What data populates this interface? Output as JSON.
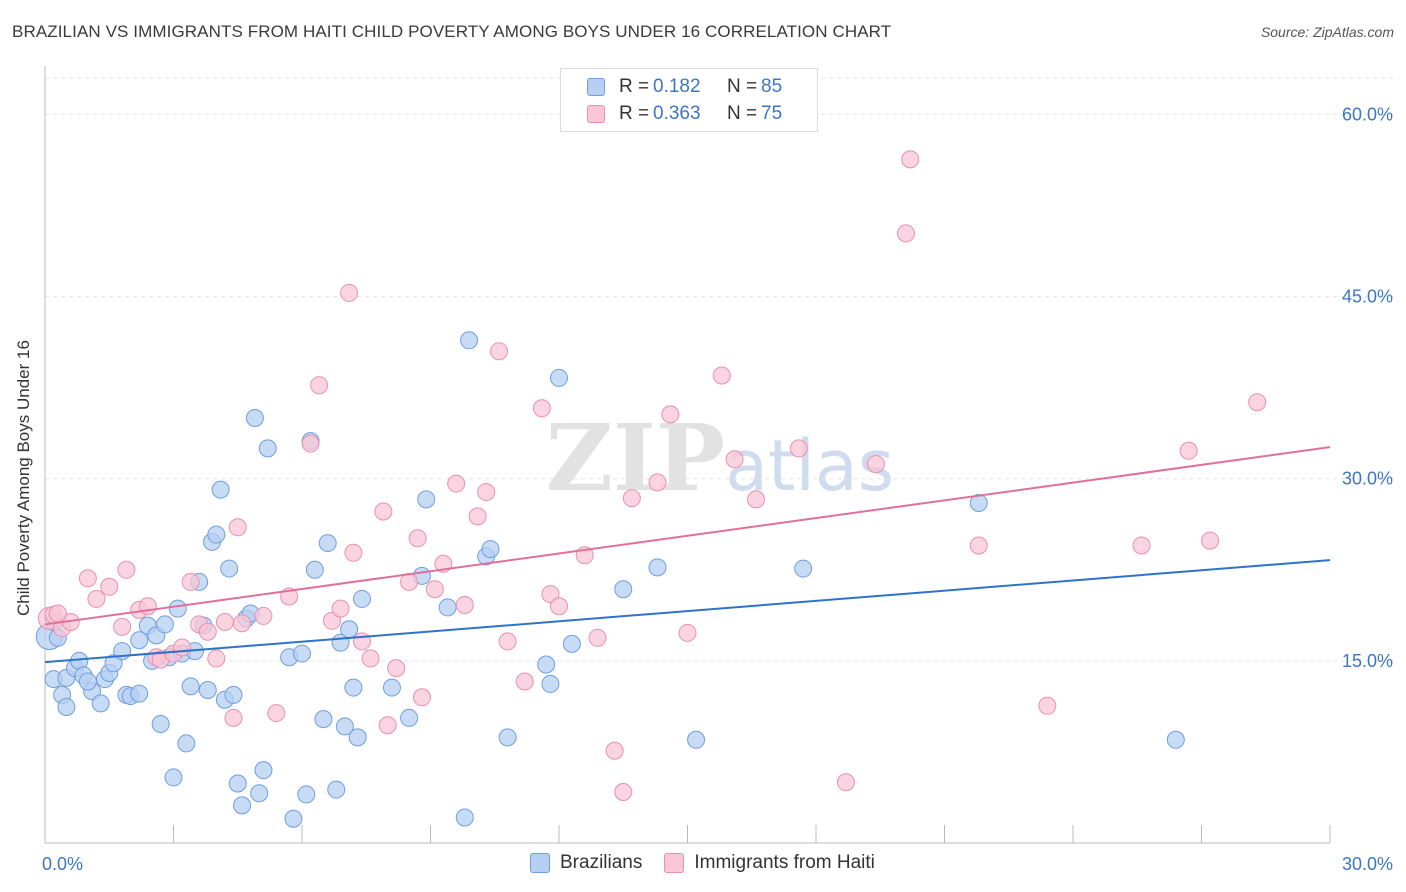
{
  "title": "BRAZILIAN VS IMMIGRANTS FROM HAITI CHILD POVERTY AMONG BOYS UNDER 16 CORRELATION CHART",
  "source": "Source: ZipAtlas.com",
  "watermark": "ZIPatlas",
  "legend": {
    "r_label": "R =",
    "n_label": "N =",
    "rows": [
      {
        "r": "0.182",
        "n": "85",
        "color": "#a7c5ef"
      },
      {
        "r": "0.363",
        "n": "75",
        "color": "#f6b8cb"
      }
    ]
  },
  "bottom_legend": [
    "Brazilians",
    "Immigrants from Haiti"
  ],
  "colors": {
    "blue_fill": "#b6cff2",
    "blue_stroke": "#6e9ee0",
    "blue_line": "#2f73c9",
    "pink_fill": "#f8c6d5",
    "pink_stroke": "#ea90ad",
    "pink_line": "#e0709a",
    "axis_text": "#3b76c4"
  },
  "chart_data": {
    "type": "scatter",
    "title": "BRAZILIAN VS IMMIGRANTS FROM HAITI CHILD POVERTY AMONG BOYS UNDER 16 CORRELATION CHART",
    "xlabel": "",
    "ylabel": "Child Poverty Among Boys Under 16",
    "xlim": [
      0,
      30
    ],
    "ylim": [
      0,
      63
    ],
    "x_tick_labels": [
      "0.0%",
      "30.0%"
    ],
    "y_ticks": [
      15,
      30,
      45,
      60
    ],
    "y_tick_labels": [
      "15.0%",
      "30.0%",
      "45.0%",
      "60.0%"
    ],
    "grid": true,
    "legend_placement": "top-center",
    "series": [
      {
        "name": "Brazilians",
        "trend": {
          "x": [
            0,
            30
          ],
          "y": [
            14.9,
            23.3
          ]
        },
        "points": [
          [
            0.1,
            17.0
          ],
          [
            0.2,
            13.5
          ],
          [
            0.4,
            12.2
          ],
          [
            0.5,
            11.2
          ],
          [
            0.5,
            13.6
          ],
          [
            0.7,
            14.4
          ],
          [
            0.8,
            15.0
          ],
          [
            0.9,
            13.8
          ],
          [
            1.1,
            12.5
          ],
          [
            1.3,
            11.5
          ],
          [
            1.4,
            13.5
          ],
          [
            1.5,
            14.0
          ],
          [
            1.6,
            14.8
          ],
          [
            1.8,
            15.8
          ],
          [
            1.9,
            12.2
          ],
          [
            2.0,
            12.1
          ],
          [
            2.2,
            12.3
          ],
          [
            2.2,
            16.7
          ],
          [
            2.4,
            17.9
          ],
          [
            2.5,
            15.0
          ],
          [
            2.6,
            17.1
          ],
          [
            2.7,
            9.8
          ],
          [
            2.8,
            18.0
          ],
          [
            2.9,
            15.3
          ],
          [
            3.0,
            5.4
          ],
          [
            3.1,
            19.3
          ],
          [
            3.2,
            15.6
          ],
          [
            3.3,
            8.2
          ],
          [
            3.4,
            12.9
          ],
          [
            3.5,
            15.8
          ],
          [
            3.6,
            21.5
          ],
          [
            3.7,
            17.9
          ],
          [
            3.8,
            12.6
          ],
          [
            3.9,
            24.8
          ],
          [
            4.0,
            25.4
          ],
          [
            4.1,
            29.1
          ],
          [
            4.2,
            11.8
          ],
          [
            4.3,
            22.6
          ],
          [
            4.4,
            12.2
          ],
          [
            4.5,
            4.9
          ],
          [
            4.6,
            3.1
          ],
          [
            4.7,
            18.5
          ],
          [
            4.8,
            18.9
          ],
          [
            4.9,
            35.0
          ],
          [
            5.0,
            4.1
          ],
          [
            5.1,
            6.0
          ],
          [
            5.2,
            32.5
          ],
          [
            5.7,
            15.3
          ],
          [
            5.8,
            2.0
          ],
          [
            6.1,
            4.0
          ],
          [
            6.2,
            33.1
          ],
          [
            6.3,
            22.5
          ],
          [
            6.5,
            10.2
          ],
          [
            6.6,
            24.7
          ],
          [
            6.8,
            4.4
          ],
          [
            6.9,
            16.5
          ],
          [
            7.0,
            9.6
          ],
          [
            7.1,
            17.6
          ],
          [
            7.2,
            12.8
          ],
          [
            7.3,
            8.7
          ],
          [
            7.4,
            20.1
          ],
          [
            8.1,
            12.8
          ],
          [
            8.5,
            10.3
          ],
          [
            8.8,
            22.0
          ],
          [
            8.9,
            28.3
          ],
          [
            9.4,
            19.4
          ],
          [
            9.8,
            2.1
          ],
          [
            9.9,
            41.4
          ],
          [
            10.3,
            23.6
          ],
          [
            10.4,
            24.2
          ],
          [
            10.8,
            8.7
          ],
          [
            11.7,
            14.7
          ],
          [
            11.8,
            13.1
          ],
          [
            12.0,
            38.3
          ],
          [
            12.3,
            16.4
          ],
          [
            13.5,
            20.9
          ],
          [
            14.3,
            22.7
          ],
          [
            15.2,
            8.5
          ],
          [
            17.7,
            22.6
          ],
          [
            21.8,
            28.0
          ],
          [
            0.2,
            18.2
          ],
          [
            0.3,
            16.9
          ],
          [
            1.0,
            13.3
          ],
          [
            26.4,
            8.5
          ],
          [
            6.0,
            15.6
          ]
        ]
      },
      {
        "name": "Immigrants from Haiti",
        "trend": {
          "x": [
            0,
            30
          ],
          "y": [
            18.0,
            32.6
          ]
        },
        "points": [
          [
            0.1,
            18.5
          ],
          [
            0.2,
            18.8
          ],
          [
            0.4,
            17.7
          ],
          [
            0.6,
            18.2
          ],
          [
            1.0,
            21.8
          ],
          [
            1.2,
            20.1
          ],
          [
            1.5,
            21.1
          ],
          [
            1.8,
            17.8
          ],
          [
            1.9,
            22.5
          ],
          [
            2.2,
            19.2
          ],
          [
            2.4,
            19.5
          ],
          [
            2.6,
            15.3
          ],
          [
            2.7,
            15.1
          ],
          [
            3.0,
            15.6
          ],
          [
            3.2,
            16.1
          ],
          [
            3.4,
            21.5
          ],
          [
            3.6,
            18.0
          ],
          [
            3.8,
            17.4
          ],
          [
            4.0,
            15.2
          ],
          [
            4.2,
            18.2
          ],
          [
            4.4,
            10.3
          ],
          [
            4.5,
            26.0
          ],
          [
            4.6,
            18.1
          ],
          [
            5.1,
            18.7
          ],
          [
            5.4,
            10.7
          ],
          [
            5.7,
            20.3
          ],
          [
            6.2,
            32.9
          ],
          [
            6.4,
            37.7
          ],
          [
            6.7,
            18.3
          ],
          [
            6.9,
            19.3
          ],
          [
            7.1,
            45.3
          ],
          [
            7.2,
            23.9
          ],
          [
            7.4,
            16.6
          ],
          [
            7.6,
            15.2
          ],
          [
            7.9,
            27.3
          ],
          [
            8.0,
            9.7
          ],
          [
            8.2,
            14.4
          ],
          [
            8.5,
            21.5
          ],
          [
            8.7,
            25.1
          ],
          [
            8.8,
            12.0
          ],
          [
            9.1,
            20.9
          ],
          [
            9.3,
            23.0
          ],
          [
            9.6,
            29.6
          ],
          [
            9.8,
            19.6
          ],
          [
            10.1,
            26.9
          ],
          [
            10.3,
            28.9
          ],
          [
            10.6,
            40.5
          ],
          [
            10.8,
            16.6
          ],
          [
            11.2,
            13.3
          ],
          [
            11.6,
            35.8
          ],
          [
            11.8,
            20.5
          ],
          [
            12.0,
            19.5
          ],
          [
            12.6,
            23.7
          ],
          [
            12.9,
            16.9
          ],
          [
            13.3,
            7.6
          ],
          [
            13.5,
            4.2
          ],
          [
            13.7,
            28.4
          ],
          [
            14.3,
            29.7
          ],
          [
            14.6,
            35.3
          ],
          [
            15.0,
            17.3
          ],
          [
            15.8,
            38.5
          ],
          [
            16.1,
            31.6
          ],
          [
            16.6,
            28.3
          ],
          [
            17.6,
            32.5
          ],
          [
            18.7,
            5.0
          ],
          [
            19.4,
            31.2
          ],
          [
            20.1,
            50.2
          ],
          [
            20.2,
            56.3
          ],
          [
            21.8,
            24.5
          ],
          [
            23.4,
            11.3
          ],
          [
            25.6,
            24.5
          ],
          [
            26.7,
            32.3
          ],
          [
            27.2,
            24.9
          ],
          [
            28.3,
            36.3
          ],
          [
            0.3,
            18.9
          ]
        ]
      }
    ]
  }
}
